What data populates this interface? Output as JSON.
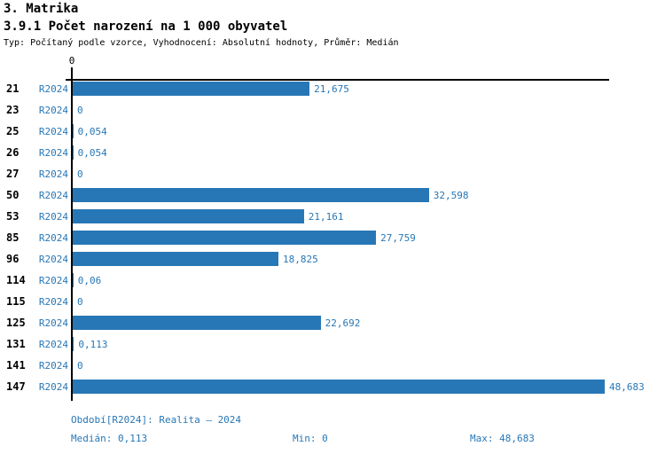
{
  "title": "3. Matrika",
  "subtitle": "3.9.1 Počet narození na 1 000 obyvatel",
  "meta": "Typ: Počítaný podle vzorce, Vyhodnocení: Absolutní hodnoty, Průměr: Medián",
  "axis": {
    "zero_label": "0"
  },
  "chart_data": {
    "type": "bar",
    "orientation": "horizontal",
    "title": "3.9.1 Počet narození na 1 000 obyvatel",
    "categories": [
      "21",
      "23",
      "25",
      "26",
      "27",
      "50",
      "53",
      "85",
      "96",
      "114",
      "115",
      "125",
      "131",
      "141",
      "147"
    ],
    "series": [
      {
        "name": "R2024",
        "values": [
          21.675,
          0,
          0.054,
          0.054,
          0,
          32.598,
          21.161,
          27.759,
          18.825,
          0.06,
          0,
          22.692,
          0.113,
          0,
          48.683
        ],
        "value_labels": [
          "21,675",
          "0",
          "0,054",
          "0,054",
          "0",
          "32,598",
          "21,161",
          "27,759",
          "18,825",
          "0,06",
          "0",
          "22,692",
          "0,113",
          "0",
          "48,683"
        ]
      }
    ],
    "xlim": [
      0,
      48.683
    ],
    "grid": false,
    "bar_color": "#2777b6",
    "axis_color": "#000000",
    "label_color": "#2777b6"
  },
  "footer": {
    "period": "Období[R2024]: Realita – 2024",
    "median": "Medián: 0,113",
    "min": "Min: 0",
    "max": "Max: 48,683"
  }
}
